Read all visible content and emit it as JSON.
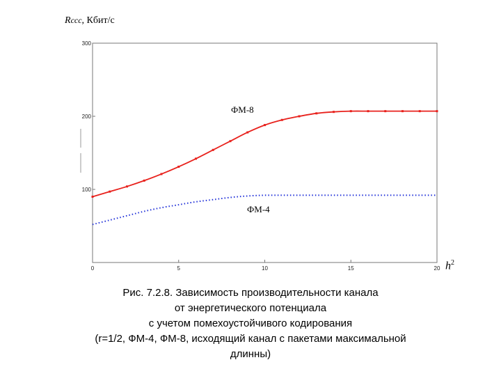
{
  "chart_data": {
    "type": "line",
    "ylabel_symbol": "R",
    "ylabel_subscript": "ccc",
    "ylabel_unit": ", Кбит/с",
    "xlabel_symbol": "h",
    "xlabel_sup": "2",
    "xlim": [
      0,
      20
    ],
    "ylim": [
      0,
      300
    ],
    "x_ticks": [
      0,
      5,
      10,
      15,
      20
    ],
    "y_ticks": [
      100,
      200,
      300
    ],
    "grid": false,
    "series": [
      {
        "name": "ФМ-8",
        "color": "#e8211c",
        "style": "solid",
        "x": [
          0,
          1,
          2,
          3,
          4,
          5,
          6,
          7,
          8,
          9,
          10,
          11,
          12,
          13,
          14,
          15,
          16,
          17,
          18,
          19,
          20
        ],
        "y": [
          90,
          97,
          104,
          112,
          121,
          131,
          142,
          154,
          166,
          178,
          188,
          195,
          200,
          204,
          206,
          207,
          207,
          207,
          207,
          207,
          207
        ]
      },
      {
        "name": "ФМ-4",
        "color": "#1f2fd8",
        "style": "dotted",
        "x": [
          0,
          1,
          2,
          3,
          4,
          5,
          6,
          7,
          8,
          9,
          10,
          11,
          12,
          13,
          14,
          15,
          16,
          17,
          18,
          19,
          20
        ],
        "y": [
          52,
          58,
          64,
          70,
          75,
          79,
          83,
          86,
          89,
          91,
          92,
          92,
          92,
          92,
          92,
          92,
          92,
          92,
          92,
          92,
          92
        ]
      }
    ]
  },
  "caption": {
    "line1": "Рис. 7.2.8. Зависимость производительности канала",
    "line2": "от энергетического потенциала",
    "line3": "с учетом помехоустойчивого кодирования",
    "line4": "(r=1/2, ФМ-4, ФМ-8, исходящий канал с пакетами максимальной",
    "line5": "длинны)"
  }
}
